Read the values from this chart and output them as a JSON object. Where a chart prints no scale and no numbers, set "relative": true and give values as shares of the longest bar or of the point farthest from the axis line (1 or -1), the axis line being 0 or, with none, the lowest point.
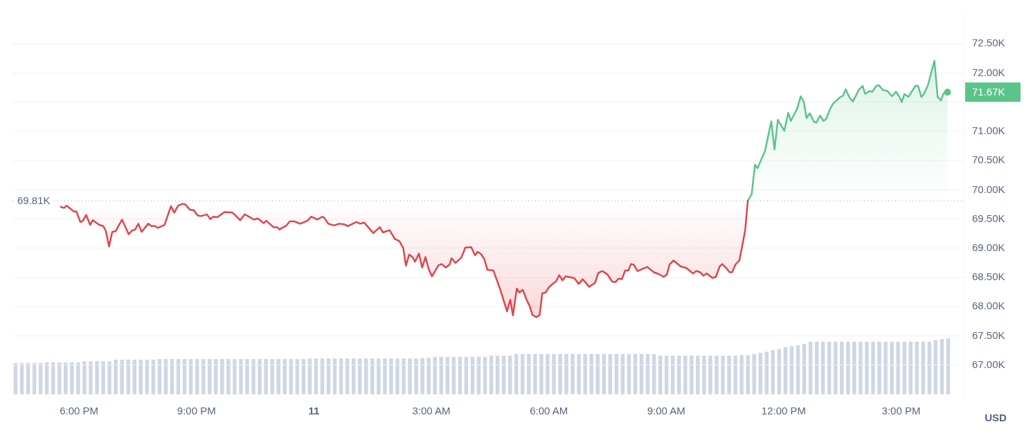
{
  "chart_data": [
    {
      "type": "line",
      "ylabel": "USD",
      "xlim": [
        "--03-10T16:18",
        "--03-11T16:36"
      ],
      "ylim": [
        66.5,
        73.0
      ],
      "xticks": [
        {
          "value": "--03-10T18:00",
          "label": "6:00 PM"
        },
        {
          "value": "--03-10T21:00",
          "label": "9:00 PM"
        },
        {
          "value": "--03-11T00:00",
          "label": "11"
        },
        {
          "value": "--03-11T03:00",
          "label": "3:00 AM"
        },
        {
          "value": "--03-11T06:00",
          "label": "6:00 AM"
        },
        {
          "value": "--03-11T09:00",
          "label": "9:00 AM"
        },
        {
          "value": "--03-11T12:00",
          "label": "12:00 PM"
        },
        {
          "value": "--03-11T15:00",
          "label": "3:00 PM"
        }
      ],
      "yticks": [
        {
          "value": 67,
          "label": "67.00K"
        },
        {
          "value": 67.5,
          "label": "67.50K"
        },
        {
          "value": 68,
          "label": "68.00K"
        },
        {
          "value": 68.5,
          "label": "68.50K"
        },
        {
          "value": 69,
          "label": "69.00K"
        },
        {
          "value": 69.5,
          "label": "69.50K"
        },
        {
          "value": 70,
          "label": "70.00K"
        },
        {
          "value": 70.5,
          "label": "70.50K"
        },
        {
          "value": 71,
          "label": "71.00K"
        },
        {
          "value": 71.5,
          "label": null
        },
        {
          "value": 72,
          "label": "72.00K"
        },
        {
          "value": 72.5,
          "label": "72.50K"
        }
      ],
      "grid": "y",
      "legend": false,
      "marker": "none",
      "line_style": "solid",
      "ref_lines": [
        {
          "axis": "y",
          "value": 69.81,
          "label": "69.81K",
          "color": "#a6b0c3",
          "line_style": "dotted"
        }
      ],
      "annotations": [
        {
          "text": "71.67K",
          "x": "--03-11T16:11",
          "y": 71.67
        }
      ],
      "series": [
        {
          "type": "area",
          "color": "#e0454a",
          "x": [
            "--03-10T17:32",
            "--03-10T17:37",
            "--03-10T17:41",
            "--03-10T17:52",
            "--03-10T17:56",
            "--03-10T18:02",
            "--03-10T18:06",
            "--03-10T18:11",
            "--03-10T18:17",
            "--03-10T18:21",
            "--03-10T18:31",
            "--03-10T18:37",
            "--03-10T18:41",
            "--03-10T18:46",
            "--03-10T18:51",
            "--03-10T18:56",
            "--03-10T19:06",
            "--03-10T19:16",
            "--03-10T19:21",
            "--03-10T19:26",
            "--03-10T19:31",
            "--03-10T19:36",
            "--03-10T19:46",
            "--03-10T19:51",
            "--03-10T19:56",
            "--03-10T20:01",
            "--03-10T20:11",
            "--03-10T20:21",
            "--03-10T20:26",
            "--03-10T20:32",
            "--03-10T20:39",
            "--03-10T20:43",
            "--03-10T20:50",
            "--03-10T20:56",
            "--03-10T21:02",
            "--03-10T21:07",
            "--03-10T21:16",
            "--03-10T21:21",
            "--03-10T21:26",
            "--03-10T21:32",
            "--03-10T21:43",
            "--03-10T21:55",
            "--03-10T22:00",
            "--03-10T22:07",
            "--03-10T22:14",
            "--03-10T22:19",
            "--03-10T22:28",
            "--03-10T22:34",
            "--03-10T22:43",
            "--03-10T22:47",
            "--03-10T22:58",
            "--03-10T23:04",
            "--03-10T23:07",
            "--03-10T23:13",
            "--03-10T23:17",
            "--03-10T23:23",
            "--03-10T23:30",
            "--03-10T23:39",
            "--03-10T23:50",
            "--03-10T23:56",
            "--03-11T00:05",
            "--03-11T00:13",
            "--03-11T00:16",
            "--03-11T00:22",
            "--03-11T00:31",
            "--03-11T00:39",
            "--03-11T00:46",
            "--03-11T00:52",
            "--03-11T01:05",
            "--03-11T01:11",
            "--03-11T01:17",
            "--03-11T01:31",
            "--03-11T01:41",
            "--03-11T01:46",
            "--03-11T01:56",
            "--03-11T02:04",
            "--03-11T02:11",
            "--03-11T02:17",
            "--03-11T02:21",
            "--03-11T02:26",
            "--03-11T02:31",
            "--03-11T02:35",
            "--03-11T02:41",
            "--03-11T02:46",
            "--03-11T02:51",
            "--03-11T02:56",
            "--03-11T03:01",
            "--03-11T03:11",
            "--03-11T03:16",
            "--03-11T03:22",
            "--03-11T03:28",
            "--03-11T03:31",
            "--03-11T03:37",
            "--03-11T03:41",
            "--03-11T03:46",
            "--03-11T03:52",
            "--03-11T04:01",
            "--03-11T04:07",
            "--03-11T04:11",
            "--03-11T04:16",
            "--03-11T04:21",
            "--03-11T04:26",
            "--03-11T04:35",
            "--03-11T04:46",
            "--03-11T04:56",
            "--03-11T05:01",
            "--03-11T05:05",
            "--03-11T05:11",
            "--03-11T05:15",
            "--03-11T05:20",
            "--03-11T05:26",
            "--03-11T05:31",
            "--03-11T05:35",
            "--03-11T05:41",
            "--03-11T05:46",
            "--03-11T05:50",
            "--03-11T05:55",
            "--03-11T06:00",
            "--03-11T06:07",
            "--03-11T06:11",
            "--03-11T06:16",
            "--03-11T06:21",
            "--03-11T06:26",
            "--03-11T06:34",
            "--03-11T06:39",
            "--03-11T06:46",
            "--03-11T06:52",
            "--03-11T07:02",
            "--03-11T07:11",
            "--03-11T07:16",
            "--03-11T07:22",
            "--03-11T07:30",
            "--03-11T07:37",
            "--03-11T07:42",
            "--03-11T07:47",
            "--03-11T07:52",
            "--03-11T07:57",
            "--03-11T08:02",
            "--03-11T08:06",
            "--03-11T08:10",
            "--03-11T08:16",
            "--03-11T08:31",
            "--03-11T08:41",
            "--03-11T08:48",
            "--03-11T08:56",
            "--03-11T09:01",
            "--03-11T09:05",
            "--03-11T09:11",
            "--03-11T09:22",
            "--03-11T09:31",
            "--03-11T09:41",
            "--03-11T09:46",
            "--03-11T09:52",
            "--03-11T09:57",
            "--03-11T10:02",
            "--03-11T10:11",
            "--03-11T10:16",
            "--03-11T10:22",
            "--03-11T10:26",
            "--03-11T10:32",
            "--03-11T10:37",
            "--03-11T10:41",
            "--03-11T10:46",
            "--03-11T10:52",
            "--03-11T10:56",
            "--03-11T11:01",
            "--03-11T11:05"
          ],
          "values": [
            69.71,
            69.69,
            69.73,
            69.63,
            69.63,
            69.45,
            69.47,
            69.57,
            69.4,
            69.48,
            69.4,
            69.38,
            69.3,
            69.03,
            69.28,
            69.29,
            69.49,
            69.24,
            69.3,
            69.32,
            69.42,
            69.28,
            69.42,
            69.38,
            69.38,
            69.35,
            69.4,
            69.72,
            69.61,
            69.73,
            69.76,
            69.75,
            69.66,
            69.65,
            69.56,
            69.55,
            69.58,
            69.5,
            69.54,
            69.53,
            69.62,
            69.61,
            69.56,
            69.48,
            69.58,
            69.55,
            69.49,
            69.51,
            69.43,
            69.47,
            69.36,
            69.36,
            69.32,
            69.36,
            69.38,
            69.46,
            69.46,
            69.42,
            69.47,
            69.54,
            69.49,
            69.54,
            69.52,
            69.42,
            69.39,
            69.42,
            69.41,
            69.38,
            69.45,
            69.42,
            69.44,
            69.26,
            69.36,
            69.27,
            69.31,
            69.16,
            69.12,
            69.0,
            68.7,
            68.89,
            68.85,
            68.77,
            68.91,
            68.67,
            68.85,
            68.64,
            68.52,
            68.71,
            68.73,
            68.67,
            68.72,
            68.83,
            68.75,
            68.79,
            68.84,
            69.01,
            69.02,
            68.88,
            68.94,
            68.9,
            68.82,
            68.63,
            68.62,
            68.28,
            67.92,
            68.12,
            67.85,
            68.31,
            68.24,
            68.29,
            68.12,
            68.0,
            67.86,
            67.82,
            67.86,
            68.23,
            68.24,
            68.33,
            68.4,
            68.43,
            68.54,
            68.45,
            68.52,
            68.5,
            68.49,
            68.39,
            68.47,
            68.34,
            68.41,
            68.58,
            68.61,
            68.55,
            68.43,
            68.42,
            68.48,
            68.47,
            68.62,
            68.62,
            68.73,
            68.72,
            68.61,
            68.68,
            68.59,
            68.56,
            68.51,
            68.55,
            68.72,
            68.79,
            68.69,
            68.66,
            68.57,
            68.61,
            68.59,
            68.53,
            68.57,
            68.49,
            68.51,
            68.69,
            68.73,
            68.66,
            68.59,
            68.59,
            68.72,
            68.79,
            69.01,
            69.31,
            69.81
          ]
        },
        {
          "type": "area",
          "color": "#5bc489",
          "x": [
            "--03-11T11:05",
            "--03-11T11:11",
            "--03-11T11:16",
            "--03-11T11:20",
            "--03-11T11:26",
            "--03-11T11:31",
            "--03-11T11:41",
            "--03-11T11:46",
            "--03-11T11:51",
            "--03-11T12:01",
            "--03-11T12:07",
            "--03-11T12:11",
            "--03-11T12:21",
            "--03-11T12:26",
            "--03-11T12:31",
            "--03-11T12:35",
            "--03-11T12:40",
            "--03-11T12:46",
            "--03-11T12:50",
            "--03-11T12:56",
            "--03-11T13:01",
            "--03-11T13:05",
            "--03-11T13:11",
            "--03-11T13:16",
            "--03-11T13:27",
            "--03-11T13:31",
            "--03-11T13:35",
            "--03-11T13:41",
            "--03-11T13:46",
            "--03-11T13:55",
            "--03-11T14:01",
            "--03-11T14:05",
            "--03-11T14:11",
            "--03-11T14:16",
            "--03-11T14:22",
            "--03-11T14:26",
            "--03-11T14:32",
            "--03-11T14:39",
            "--03-11T14:46",
            "--03-11T14:52",
            "--03-11T14:56",
            "--03-11T15:01",
            "--03-11T15:05",
            "--03-11T15:11",
            "--03-11T15:22",
            "--03-11T15:26",
            "--03-11T15:31",
            "--03-11T15:35",
            "--03-11T15:41",
            "--03-11T15:51",
            "--03-11T15:56",
            "--03-11T16:01",
            "--03-11T16:05",
            "--03-11T16:11"
          ],
          "values": [
            69.81,
            69.93,
            70.43,
            70.37,
            70.53,
            70.65,
            71.17,
            70.69,
            71.2,
            71.01,
            71.32,
            71.18,
            71.4,
            71.6,
            71.5,
            71.23,
            71.31,
            71.17,
            71.15,
            71.27,
            71.18,
            71.21,
            71.38,
            71.48,
            71.59,
            71.61,
            71.72,
            71.58,
            71.51,
            71.71,
            71.78,
            71.64,
            71.69,
            71.68,
            71.78,
            71.79,
            71.71,
            71.69,
            71.6,
            71.68,
            71.62,
            71.5,
            71.64,
            71.59,
            71.78,
            71.78,
            71.59,
            71.64,
            71.79,
            72.21,
            71.59,
            71.53,
            71.65,
            71.67
          ]
        }
      ]
    },
    {
      "type": "bar",
      "relative": true,
      "color": "#cfd6e4",
      "categories": [
        null,
        null,
        null,
        null,
        null,
        null,
        null,
        null,
        null,
        null,
        null,
        null,
        null,
        null,
        null,
        null,
        null,
        null,
        null,
        null,
        null,
        null,
        null,
        null,
        null,
        null,
        null,
        null,
        null,
        null,
        null,
        null,
        null,
        null,
        null,
        null,
        null,
        null,
        null,
        null,
        null,
        null,
        null,
        null,
        null,
        null,
        null,
        null,
        null,
        null,
        null,
        null,
        null,
        null,
        null,
        null,
        null,
        null,
        null,
        null,
        null,
        null,
        null,
        null,
        null,
        null,
        null,
        null,
        null,
        null,
        null,
        null,
        null,
        null,
        null,
        null,
        null,
        null,
        null,
        null,
        null,
        null,
        null,
        null,
        null,
        null,
        null,
        null,
        null,
        null,
        null,
        null,
        null,
        null,
        null,
        null,
        null,
        null,
        null,
        null,
        null,
        null,
        null,
        null,
        null,
        null,
        null,
        null,
        null,
        null,
        null,
        null,
        null,
        null,
        null,
        null,
        null,
        null,
        null,
        null,
        null,
        null,
        null,
        null,
        null,
        null,
        null,
        null,
        null,
        null,
        null,
        null,
        null,
        null,
        null,
        null,
        null,
        null,
        null,
        null,
        null,
        null,
        null,
        null,
        null,
        null,
        null,
        null,
        null,
        null
      ],
      "values": [
        0.56,
        0.56,
        0.56,
        0.56,
        0.56,
        0.57,
        0.57,
        0.57,
        0.57,
        0.57,
        0.57,
        0.59,
        0.59,
        0.59,
        0.59,
        0.59,
        0.62,
        0.62,
        0.62,
        0.62,
        0.62,
        0.62,
        0.62,
        0.63,
        0.63,
        0.63,
        0.63,
        0.63,
        0.63,
        0.63,
        0.63,
        0.63,
        0.63,
        0.63,
        0.63,
        0.63,
        0.63,
        0.63,
        0.63,
        0.63,
        0.63,
        0.63,
        0.63,
        0.63,
        0.63,
        0.63,
        0.63,
        0.64,
        0.64,
        0.64,
        0.64,
        0.64,
        0.64,
        0.64,
        0.64,
        0.64,
        0.64,
        0.64,
        0.64,
        0.64,
        0.64,
        0.64,
        0.64,
        0.64,
        0.64,
        0.65,
        0.65,
        0.67,
        0.67,
        0.67,
        0.67,
        0.67,
        0.67,
        0.67,
        0.67,
        0.67,
        0.69,
        0.69,
        0.69,
        0.69,
        0.72,
        0.72,
        0.72,
        0.72,
        0.72,
        0.72,
        0.72,
        0.72,
        0.72,
        0.72,
        0.72,
        0.72,
        0.72,
        0.72,
        0.72,
        0.72,
        0.72,
        0.72,
        0.72,
        0.72,
        0.72,
        0.72,
        0.72,
        0.69,
        0.69,
        0.69,
        0.69,
        0.69,
        0.69,
        0.69,
        0.69,
        0.69,
        0.69,
        0.69,
        0.69,
        0.69,
        0.7,
        0.7,
        0.72,
        0.74,
        0.76,
        0.79,
        0.81,
        0.84,
        0.86,
        0.88,
        0.9,
        0.94,
        0.94,
        0.94,
        0.94,
        0.94,
        0.94,
        0.94,
        0.94,
        0.94,
        0.94,
        0.94,
        0.94,
        0.94,
        0.94,
        0.94,
        0.94,
        0.94,
        0.94,
        0.94,
        0.94,
        0.97,
        0.99,
        1
      ]
    }
  ]
}
